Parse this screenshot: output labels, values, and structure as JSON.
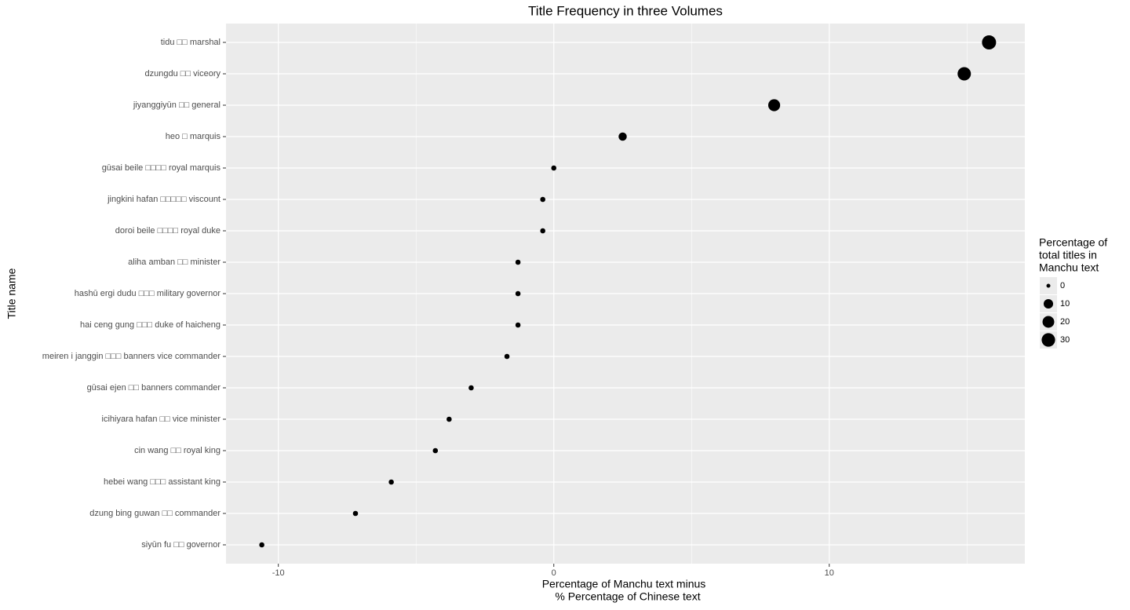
{
  "chart_data": {
    "type": "dot",
    "title": "Title Frequency in three Volumes",
    "x_label": [
      "Percentage of Manchu text minus",
      "% Percentage of Chinese text"
    ],
    "y_label": "Title name",
    "categories": [
      "tidu □□ marshal",
      "dzungdu □□ viceory",
      "jiyanggiyūn □□ general",
      "heo □ marquis",
      "gūsai  beile □□□□ royal marquis",
      "jingkini  hafan □□□□□ viscount",
      "doroi  beile □□□□ royal duke",
      "aliha  amban □□ minister",
      "hashū  ergi  dudu □□□ military governor",
      "hai  ceng  gung □□□ duke of haicheng",
      "meiren  i  janggin □□□ banners vice commander",
      "gūsai  ejen □□ banners commander",
      "icihiyara  hafan □□ vice minister",
      "cin  wang □□ royal king",
      "hebei  wang □□□ assistant king",
      "dzung  bing guwan □□ commander",
      "siyūn  fu □□ governor"
    ],
    "values": [
      15.8,
      14.9,
      8.0,
      2.5,
      0.0,
      -0.4,
      -0.4,
      -1.3,
      -1.3,
      -1.3,
      -1.7,
      -3.0,
      -3.8,
      -4.3,
      -5.9,
      -7.2,
      -10.6
    ],
    "sizes": [
      34,
      29,
      21,
      6,
      0.5,
      0.5,
      0.5,
      0.5,
      0.5,
      0.5,
      0.5,
      0.5,
      0.5,
      0.5,
      0.5,
      0.5,
      0.5
    ],
    "color": "#000000",
    "xlim": [
      -11.9,
      17.1
    ],
    "xticks": [
      -10,
      0,
      10
    ],
    "xminor": [
      -5,
      5,
      15
    ],
    "grid": true,
    "size_legend": {
      "title": [
        "Percentage of",
        "total titles in",
        "Manchu text"
      ],
      "values": [
        0,
        10,
        20,
        30
      ]
    }
  }
}
